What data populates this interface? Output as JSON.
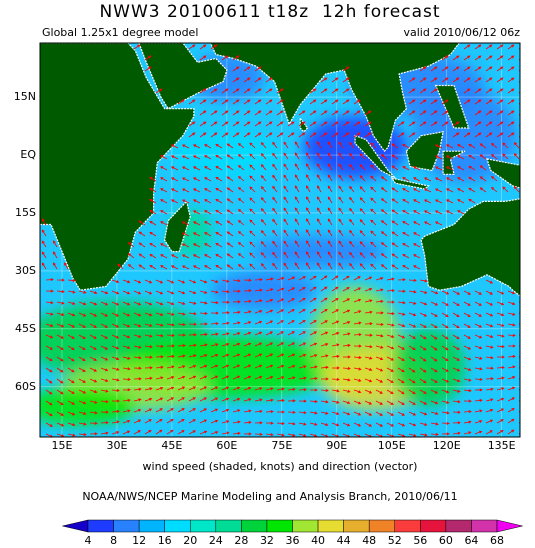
{
  "header": {
    "title": "NWW3 20100611 t18z  12h forecast",
    "subtitle_left": "Global 1.25x1 degree model",
    "subtitle_right": "valid 2010/06/12 06z"
  },
  "map": {
    "lonlim": [
      9,
      140
    ],
    "latlim": [
      -73,
      29
    ],
    "lon_ticks": [
      {
        "value": 15,
        "label": "15E"
      },
      {
        "value": 30,
        "label": "30E"
      },
      {
        "value": 45,
        "label": "45E"
      },
      {
        "value": 60,
        "label": "60E"
      },
      {
        "value": 75,
        "label": "75E"
      },
      {
        "value": 90,
        "label": "90E"
      },
      {
        "value": 105,
        "label": "105E"
      },
      {
        "value": 120,
        "label": "120E"
      },
      {
        "value": 135,
        "label": "135E"
      }
    ],
    "lat_ticks": [
      {
        "value": 15,
        "label": "15N"
      },
      {
        "value": 0,
        "label": "EQ"
      },
      {
        "value": -15,
        "label": "15S"
      },
      {
        "value": -30,
        "label": "30S"
      },
      {
        "value": -45,
        "label": "45S"
      },
      {
        "value": -60,
        "label": "60S"
      }
    ],
    "land_color": "#005a00",
    "ocean_color": "#1ec8ff",
    "vector_color": "#ff0000"
  },
  "caption": "wind speed (shaded, knots) and direction (vector)",
  "credit": "NOAA/NWS/NCEP Marine Modeling and Analysis Branch, 2010/06/11",
  "colorbar": {
    "levels": [
      4,
      8,
      12,
      16,
      20,
      24,
      28,
      32,
      36,
      40,
      44,
      48,
      52,
      56,
      60,
      64,
      68
    ],
    "colors": [
      "#1400c8",
      "#1e3cff",
      "#2882ff",
      "#00b4ff",
      "#00dcff",
      "#00e6c8",
      "#00dc96",
      "#00d23c",
      "#00e600",
      "#a0e632",
      "#e6dc32",
      "#e6af2d",
      "#f08228",
      "#fa3c3c",
      "#e6143c",
      "#b4286e",
      "#d232aa",
      "#f000f0"
    ]
  }
}
